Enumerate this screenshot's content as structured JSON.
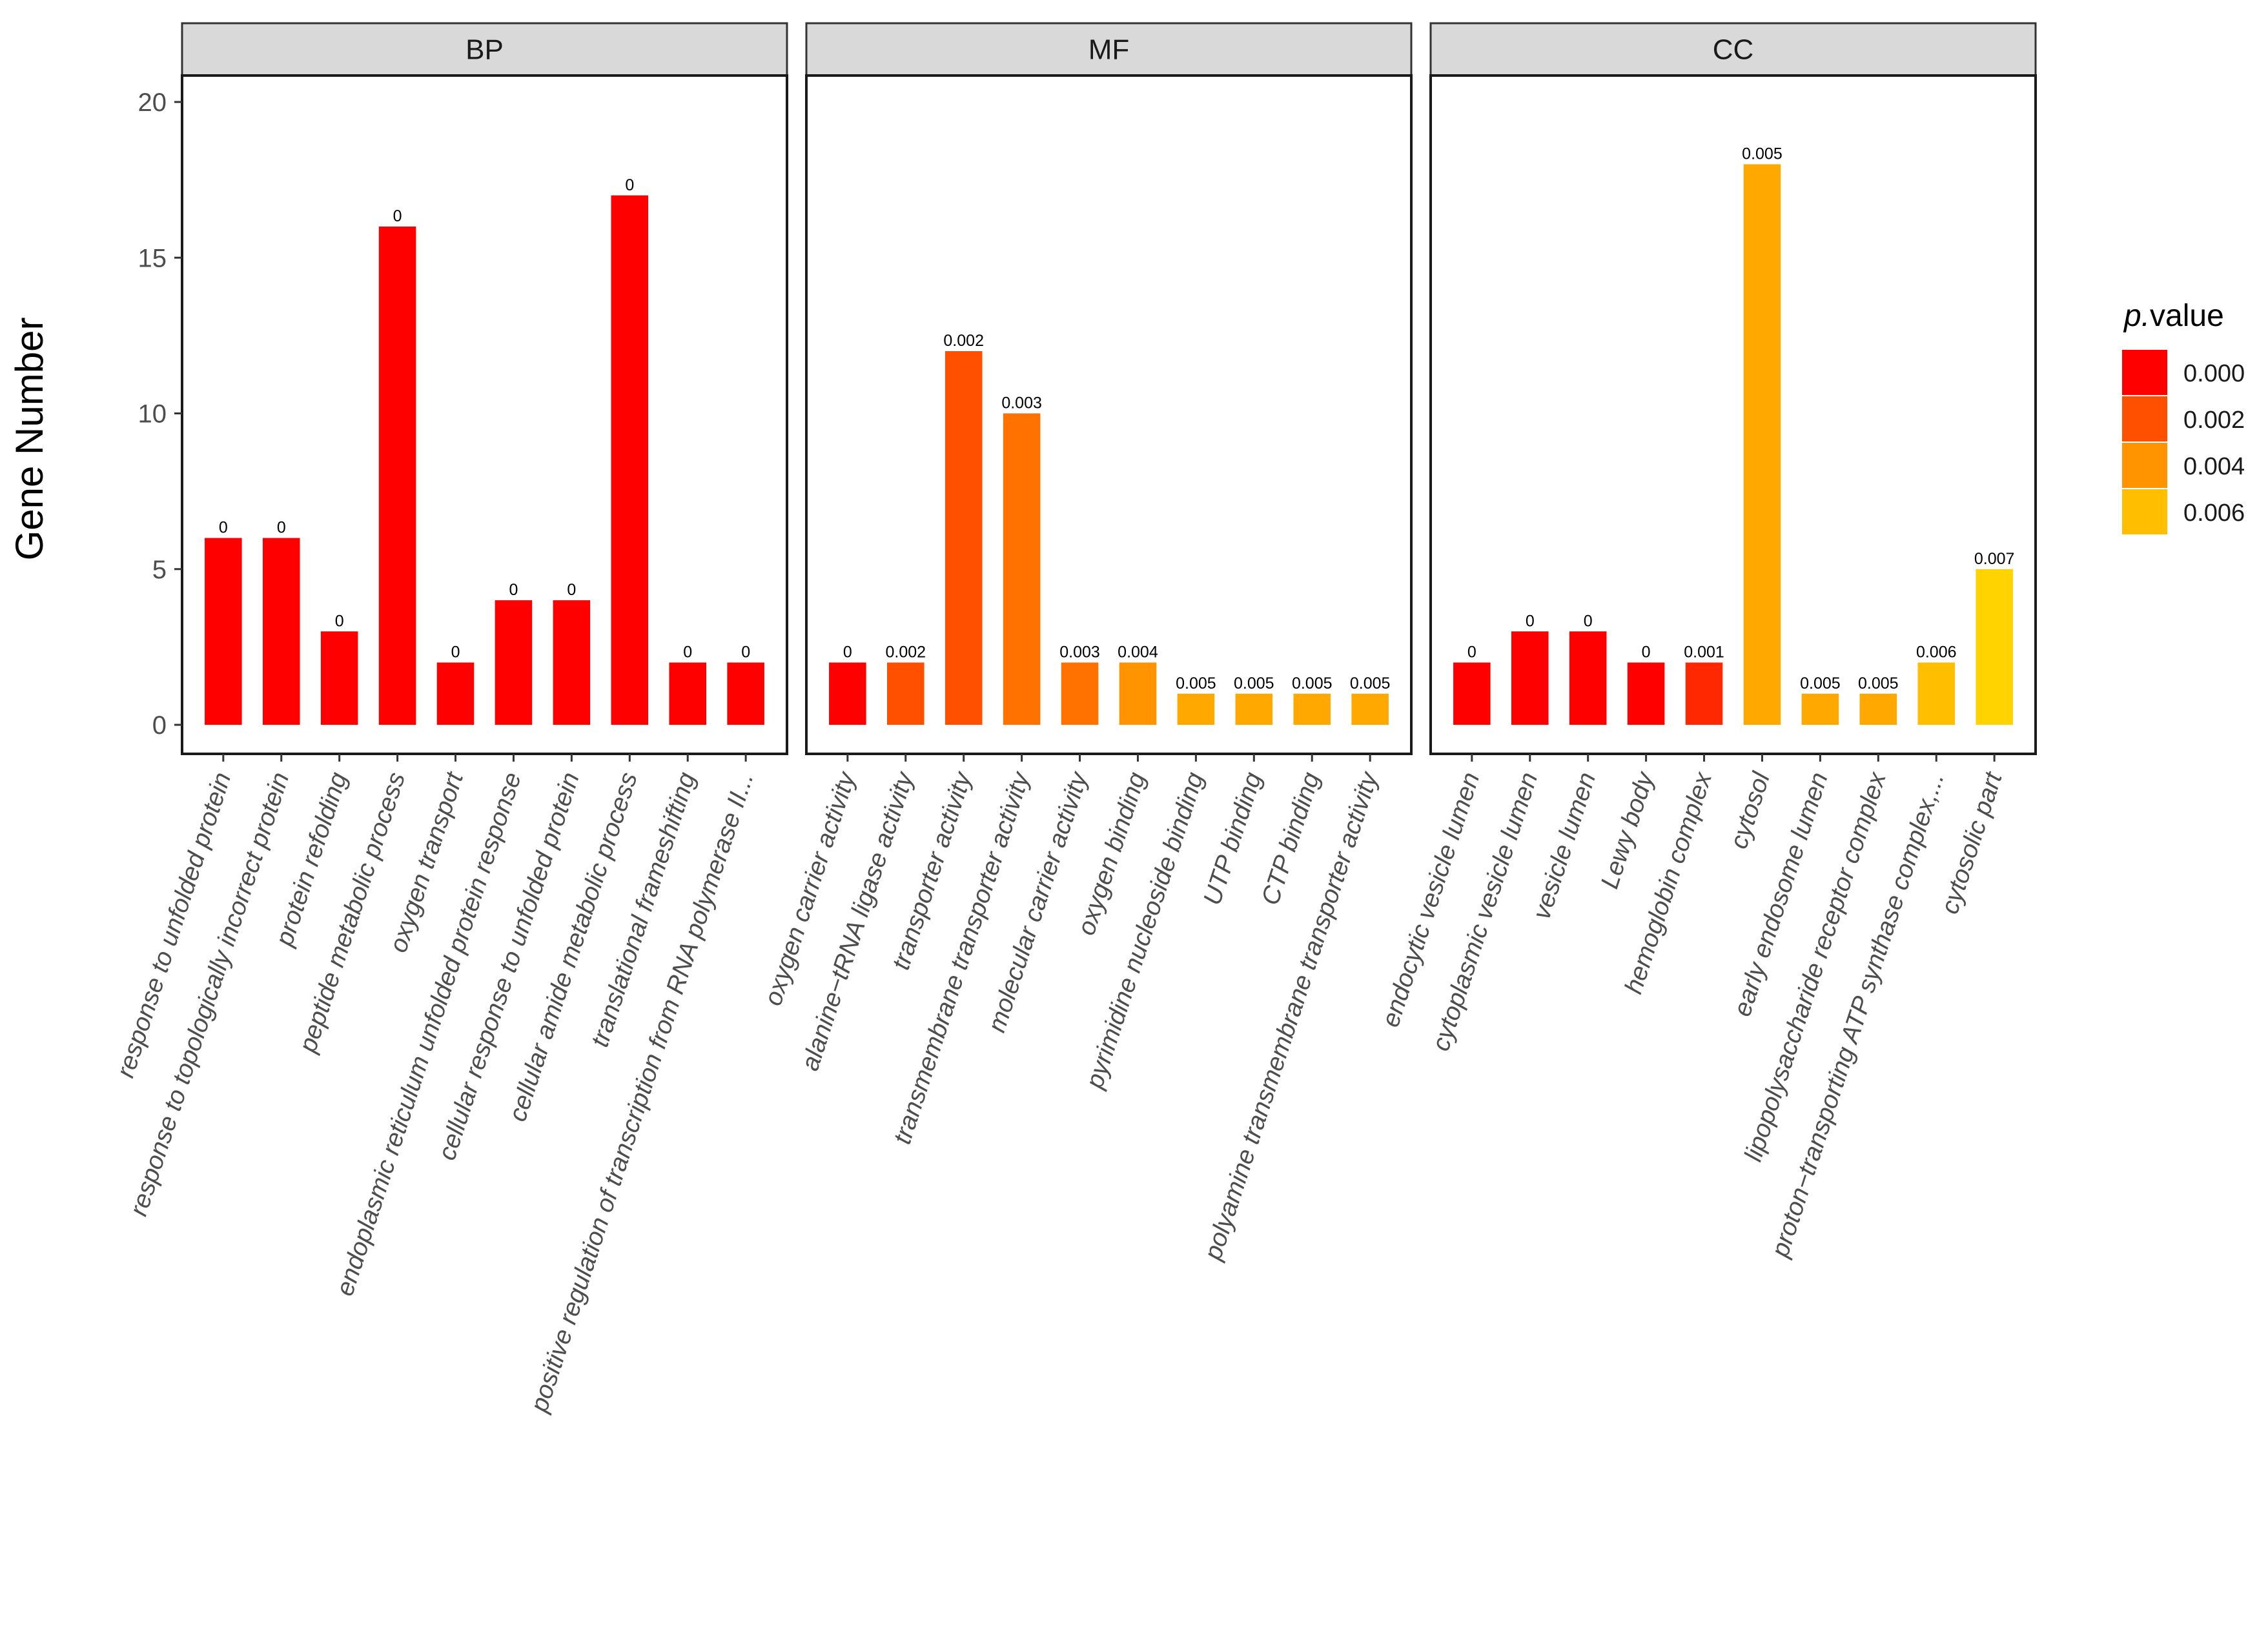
{
  "chart_data": {
    "type": "bar",
    "ylabel": "Gene Number",
    "xlabel": "",
    "ylim": [
      0,
      21
    ],
    "yticks": [
      "0",
      "5",
      "10",
      "15",
      "20"
    ],
    "ytick_values": [
      0,
      5,
      10,
      15,
      20
    ],
    "legend": {
      "title_prefix": "p.",
      "title_suffix": "value",
      "labels": [
        "0.000",
        "0.002",
        "0.004",
        "0.006"
      ],
      "values": [
        0.0,
        0.002,
        0.004,
        0.006
      ],
      "placement": "right"
    },
    "color_scale": {
      "low": "#ff0000",
      "mid1": "#ff5000",
      "mid2": "#ff9400",
      "high": "#ffd300",
      "domain": [
        0,
        0.007
      ]
    },
    "panels": [
      {
        "name": "BP",
        "categories": [
          "response to unfolded protein",
          "response to topologically incorrect protein",
          "protein refolding",
          "peptide metabolic process",
          "oxygen transport",
          "endoplasmic reticulum unfolded protein response",
          "cellular response to unfolded protein",
          "cellular amide metabolic process",
          "translational frameshifting",
          "positive regulation of transcription from RNA polymerase II..."
        ],
        "values": [
          6,
          6,
          3,
          16,
          2,
          4,
          4,
          17,
          2,
          2
        ],
        "pvalues": [
          0,
          0,
          0,
          0,
          0,
          0,
          0,
          0,
          0,
          0
        ],
        "labels": [
          "0",
          "0",
          "0",
          "0",
          "0",
          "0",
          "0",
          "0",
          "0",
          "0"
        ]
      },
      {
        "name": "MF",
        "categories": [
          "oxygen carrier activity",
          "alanine−tRNA ligase activity",
          "transporter activity",
          "transmembrane transporter activity",
          "molecular carrier activity",
          "oxygen binding",
          "pyrimidine nucleoside binding",
          "UTP binding",
          "CTP binding",
          "polyamine transmembrane transporter activity"
        ],
        "values": [
          2,
          2,
          12,
          10,
          2,
          2,
          1,
          1,
          1,
          1
        ],
        "pvalues": [
          0,
          0.002,
          0.002,
          0.003,
          0.003,
          0.004,
          0.005,
          0.005,
          0.005,
          0.005
        ],
        "labels": [
          "0",
          "0.002",
          "0.002",
          "0.003",
          "0.003",
          "0.004",
          "0.005",
          "0.005",
          "0.005",
          "0.005"
        ]
      },
      {
        "name": "CC",
        "categories": [
          "endocytic vesicle lumen",
          "cytoplasmic vesicle lumen",
          "vesicle lumen",
          "Lewy body",
          "hemoglobin complex",
          "cytosol",
          "early endosome lumen",
          "lipopolysaccharide receptor complex",
          "proton−transporting ATP synthase complex,...",
          "cytosolic part"
        ],
        "values": [
          2,
          3,
          3,
          2,
          2,
          18,
          1,
          1,
          2,
          5
        ],
        "pvalues": [
          0,
          0,
          0,
          0,
          0.001,
          0.005,
          0.005,
          0.005,
          0.006,
          0.007
        ],
        "labels": [
          "0",
          "0",
          "0",
          "0",
          "0.001",
          "0.005",
          "0.005",
          "0.005",
          "0.006",
          "0.007"
        ]
      }
    ]
  }
}
